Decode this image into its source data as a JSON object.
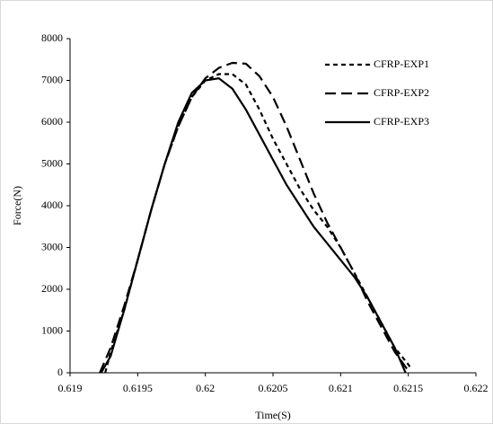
{
  "chart_data": {
    "type": "line",
    "x_label": "Time(S)",
    "y_label": "Force(N)",
    "xlim": [
      0.619,
      0.622
    ],
    "xticks": [
      0.619,
      0.6195,
      0.62,
      0.6205,
      0.621,
      0.6215,
      0.622
    ],
    "ylim": [
      0,
      8000
    ],
    "yticks": [
      0,
      1000,
      2000,
      3000,
      4000,
      5000,
      6000,
      7000,
      8000
    ],
    "grid": false,
    "legend": "upper right",
    "series": [
      {
        "name": "CFRP-EXP1",
        "color": "#000000",
        "line_style": "dotted",
        "x": [
          0.61926,
          0.6193,
          0.6194,
          0.6195,
          0.6196,
          0.6197,
          0.6198,
          0.6199,
          0.62,
          0.6201,
          0.6202,
          0.6203,
          0.6204,
          0.6205,
          0.6206,
          0.6207,
          0.6208,
          0.6209,
          0.621,
          0.6211,
          0.6212,
          0.6213,
          0.6214,
          0.6215,
          0.62152
        ],
        "values": [
          0,
          500,
          1500,
          2700,
          3900,
          5000,
          5900,
          6600,
          7000,
          7150,
          7150,
          6900,
          6300,
          5600,
          5000,
          4400,
          3900,
          3500,
          3000,
          2400,
          1800,
          1200,
          600,
          200,
          100
        ]
      },
      {
        "name": "CFRP-EXP2",
        "color": "#000000",
        "line_style": "dashed",
        "x": [
          0.61922,
          0.6193,
          0.6194,
          0.6195,
          0.6196,
          0.6197,
          0.6198,
          0.6199,
          0.62,
          0.6201,
          0.6202,
          0.6203,
          0.6204,
          0.6205,
          0.6206,
          0.6207,
          0.6208,
          0.6209,
          0.621,
          0.6211,
          0.6212,
          0.6213,
          0.6214,
          0.6215
        ],
        "values": [
          0,
          600,
          1600,
          2700,
          3900,
          5000,
          5900,
          6600,
          7050,
          7300,
          7420,
          7400,
          7100,
          6600,
          5900,
          5100,
          4300,
          3600,
          3000,
          2400,
          1700,
          1100,
          500,
          50
        ]
      },
      {
        "name": "CFRP-EXP3",
        "color": "#000000",
        "line_style": "solid",
        "x": [
          0.61923,
          0.6193,
          0.6194,
          0.6195,
          0.6196,
          0.6197,
          0.6198,
          0.6199,
          0.62,
          0.6201,
          0.6202,
          0.6203,
          0.6204,
          0.6205,
          0.6206,
          0.6207,
          0.6208,
          0.6209,
          0.621,
          0.6211,
          0.6212,
          0.6213,
          0.6214,
          0.62148
        ],
        "values": [
          0,
          400,
          1500,
          2700,
          3900,
          5000,
          6000,
          6700,
          7000,
          7050,
          6800,
          6300,
          5700,
          5100,
          4500,
          4000,
          3500,
          3100,
          2700,
          2300,
          1800,
          1200,
          600,
          0
        ]
      }
    ]
  }
}
